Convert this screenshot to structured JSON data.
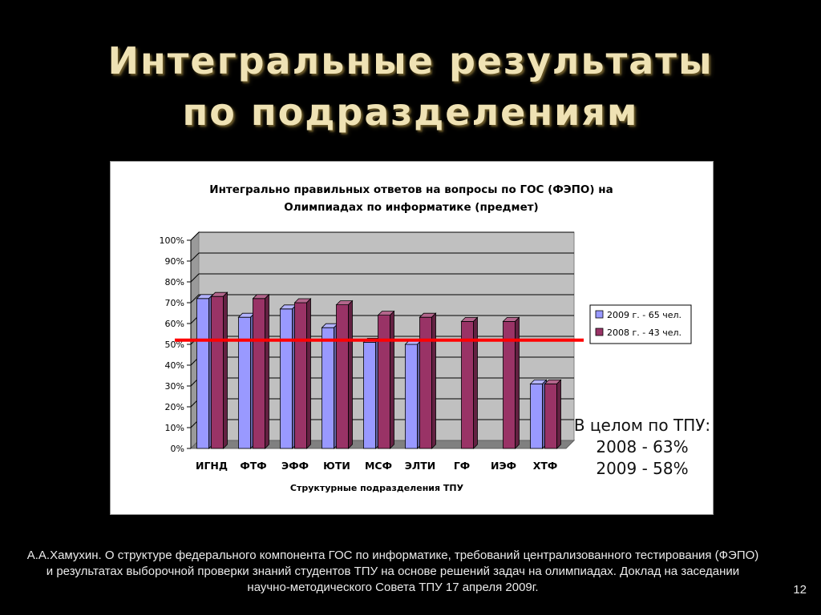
{
  "slide": {
    "title_line1": "Интегральные результаты",
    "title_line2": "по подразделениям",
    "summary": {
      "line1": "В целом по ТПУ:",
      "line2": "2008 - 63%",
      "line3": "2009 - 58%"
    },
    "footer": "А.А.Хамухин. О структуре федерального компонента ГОС по информатике, требований централизованного тестирования (ФЭПО) и результатах выборочной проверки знаний студентов ТПУ на основе решений задач на олимпиадах. Доклад на заседании научно-методического Совета ТПУ 17 апреля 2009г.",
    "page_number": "12"
  },
  "chart_data": {
    "type": "bar",
    "title_line1": "Интегрально правильных ответов на вопросы по ГОС (ФЭПО) на",
    "title_line2": "Олимпиадах по информатике (предмет)",
    "xlabel": "Структурные подразделения ТПУ",
    "ylabel": "",
    "categories": [
      "ИГНД",
      "ФТФ",
      "ЭФФ",
      "ЮТИ",
      "МСФ",
      "ЭЛТИ",
      "ГФ",
      "ИЭФ",
      "ХТФ"
    ],
    "series": [
      {
        "name": "2009 г. - 65 чел.",
        "values": [
          72,
          63,
          67,
          58,
          51,
          50,
          null,
          null,
          31
        ],
        "color": "#9999ff"
      },
      {
        "name": "2008 г. - 43 чел.",
        "values": [
          73,
          72,
          70,
          69,
          64,
          63,
          61,
          61,
          31
        ],
        "color": "#993366"
      }
    ],
    "ylim": [
      0,
      100
    ],
    "yticks": [
      "0%",
      "10%",
      "20%",
      "30%",
      "40%",
      "50%",
      "60%",
      "70%",
      "80%",
      "90%",
      "100%"
    ],
    "reference_line": {
      "value": 52,
      "color": "#ff0000"
    },
    "grid": true,
    "legend_position": "right",
    "colors": {
      "plot_background": "#c0c0c0",
      "floor": "#808080",
      "gridline": "#000000"
    }
  }
}
